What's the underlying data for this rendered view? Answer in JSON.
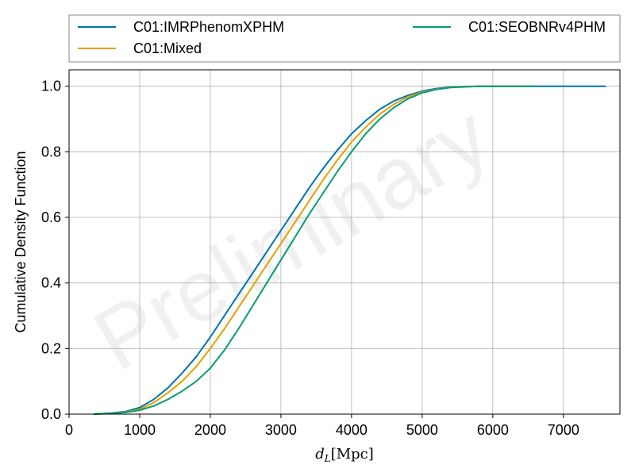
{
  "chart_data": {
    "type": "line",
    "xlabel": "d_L [Mpc]",
    "xlabel_main": "d",
    "xlabel_sub": "L",
    "xlabel_unit": "[Mpc]",
    "ylabel": "Cumulative Density Function",
    "xlim": [
      0,
      7800
    ],
    "ylim": [
      0,
      1.05
    ],
    "xticks": [
      0,
      1000,
      2000,
      3000,
      4000,
      5000,
      6000,
      7000
    ],
    "yticks": [
      0.0,
      0.2,
      0.4,
      0.6,
      0.8,
      1.0
    ],
    "xtick_labels": [
      "0",
      "1000",
      "2000",
      "3000",
      "4000",
      "5000",
      "6000",
      "7000"
    ],
    "ytick_labels": [
      "0.0",
      "0.2",
      "0.4",
      "0.6",
      "0.8",
      "1.0"
    ],
    "grid": true,
    "legend_position": "top, outside plot, two columns",
    "watermark": "Preliminary",
    "series": [
      {
        "name": "C01:IMRPhenomXPHM",
        "color": "#0072b2",
        "x": [
          350,
          600,
          800,
          1000,
          1200,
          1400,
          1600,
          1800,
          2000,
          2200,
          2400,
          2600,
          2800,
          3000,
          3200,
          3400,
          3600,
          3800,
          4000,
          4200,
          4400,
          4600,
          4800,
          5000,
          5200,
          5400,
          5600,
          5800,
          6000,
          6500,
          7000,
          7600
        ],
        "y": [
          0.0,
          0.003,
          0.008,
          0.02,
          0.045,
          0.08,
          0.125,
          0.175,
          0.235,
          0.3,
          0.365,
          0.43,
          0.495,
          0.56,
          0.625,
          0.69,
          0.75,
          0.805,
          0.855,
          0.895,
          0.93,
          0.955,
          0.972,
          0.985,
          0.993,
          0.997,
          0.999,
          1.0,
          1.0,
          1.0,
          1.0,
          1.0
        ]
      },
      {
        "name": "C01:Mixed",
        "color": "#e69f00",
        "x": [
          350,
          600,
          800,
          1000,
          1200,
          1400,
          1600,
          1800,
          2000,
          2200,
          2400,
          2600,
          2800,
          3000,
          3200,
          3400,
          3600,
          3800,
          4000,
          4200,
          4400,
          4600,
          4800,
          5000,
          5200,
          5400,
          5600,
          5800,
          6000,
          6500
        ],
        "y": [
          0.0,
          0.002,
          0.006,
          0.015,
          0.035,
          0.065,
          0.1,
          0.145,
          0.2,
          0.26,
          0.325,
          0.39,
          0.455,
          0.52,
          0.585,
          0.65,
          0.715,
          0.775,
          0.83,
          0.875,
          0.915,
          0.945,
          0.968,
          0.982,
          0.991,
          0.996,
          0.998,
          1.0,
          1.0,
          1.0
        ]
      },
      {
        "name": "C01:SEOBNRv4PHM",
        "color": "#009e73",
        "x": [
          350,
          600,
          800,
          1000,
          1200,
          1400,
          1600,
          1800,
          2000,
          2200,
          2400,
          2600,
          2800,
          3000,
          3200,
          3400,
          3600,
          3800,
          4000,
          4200,
          4400,
          4600,
          4800,
          5000,
          5200,
          5400,
          5600,
          5800,
          6000,
          6600
        ],
        "y": [
          0.0,
          0.002,
          0.005,
          0.012,
          0.025,
          0.045,
          0.07,
          0.1,
          0.14,
          0.195,
          0.26,
          0.33,
          0.4,
          0.47,
          0.54,
          0.61,
          0.675,
          0.74,
          0.8,
          0.855,
          0.9,
          0.935,
          0.962,
          0.98,
          0.99,
          0.996,
          0.998,
          1.0,
          1.0,
          1.0
        ]
      }
    ]
  }
}
